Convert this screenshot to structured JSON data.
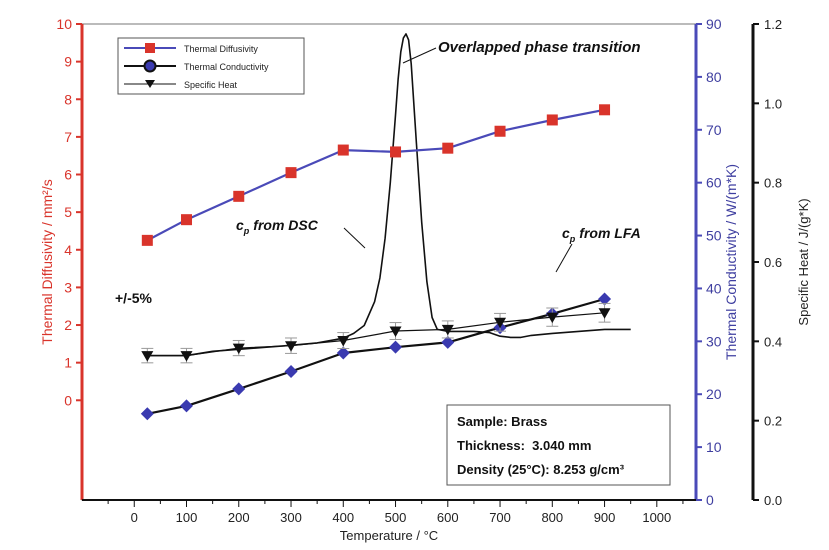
{
  "chart_data": {
    "type": "line",
    "xlabel": "Temperature / °C",
    "x_ticks": [
      0,
      100,
      200,
      300,
      400,
      500,
      600,
      700,
      800,
      900,
      1000
    ],
    "xlim": [
      -100,
      1075
    ],
    "axes": {
      "left": {
        "label": "Thermal Diffusivity / mm²/s",
        "ticks": [
          0,
          1,
          2,
          3,
          4,
          5,
          6,
          7,
          8,
          9,
          10
        ],
        "ylim": [
          -2.65,
          10
        ],
        "color": "#d9342b"
      },
      "right1": {
        "label": "Thermal Conductivity / W/(m*K)",
        "ticks": [
          0,
          10,
          20,
          30,
          40,
          50,
          60,
          70,
          80,
          90
        ],
        "ylim": [
          0,
          90
        ],
        "color": "#3f3fa0"
      },
      "right2": {
        "label": "Specific Heat / J/(g*K)",
        "ticks": [
          "0.0",
          "0.2",
          "0.4",
          "0.6",
          "0.8",
          "1.0",
          "1.2"
        ],
        "ylim": [
          0,
          1.2
        ],
        "color": "#222222"
      }
    },
    "series": [
      {
        "name": "Thermal Diffusivity",
        "axis": "left",
        "color": "#d9342b",
        "line_color": "#4a4ab8",
        "marker": "square",
        "x": [
          25,
          100,
          200,
          300,
          400,
          500,
          600,
          700,
          800,
          900
        ],
        "values": [
          4.25,
          4.8,
          5.42,
          6.05,
          6.65,
          6.6,
          6.7,
          7.15,
          7.45,
          7.72
        ]
      },
      {
        "name": "Thermal Conductivity",
        "axis": "right1",
        "color": "#3a3ab0",
        "line_color": "#111111",
        "marker": "diamond",
        "x": [
          25,
          100,
          200,
          300,
          400,
          500,
          600,
          700,
          800,
          900
        ],
        "values": [
          16.3,
          17.8,
          21.0,
          24.3,
          27.8,
          28.9,
          29.8,
          32.6,
          35.2,
          38.0
        ]
      },
      {
        "name": "Specific Heat",
        "axis": "right2",
        "color": "#111111",
        "line_color": "#111111",
        "marker": "triangle-down",
        "x": [
          25,
          100,
          200,
          300,
          400,
          500,
          600,
          700,
          800,
          900
        ],
        "values": [
          0.364,
          0.364,
          0.383,
          0.389,
          0.402,
          0.426,
          0.43,
          0.448,
          0.461,
          0.472
        ],
        "error_pct": 5
      }
    ],
    "dsc_curve": {
      "axis": "right2",
      "x": [
        25,
        100,
        150,
        200,
        250,
        300,
        350,
        400,
        420,
        440,
        460,
        470,
        480,
        490,
        500,
        505,
        510,
        515,
        520,
        525,
        530,
        540,
        550,
        560,
        570,
        580,
        600,
        650,
        680,
        700,
        720,
        740,
        760,
        800,
        850,
        900,
        950
      ],
      "values": [
        0.364,
        0.364,
        0.375,
        0.38,
        0.385,
        0.39,
        0.396,
        0.408,
        0.42,
        0.44,
        0.5,
        0.56,
        0.66,
        0.8,
        0.97,
        1.06,
        1.13,
        1.165,
        1.175,
        1.16,
        1.1,
        0.9,
        0.7,
        0.55,
        0.46,
        0.43,
        0.425,
        0.425,
        0.422,
        0.413,
        0.41,
        0.41,
        0.415,
        0.42,
        0.425,
        0.43,
        0.43
      ]
    },
    "annotations": {
      "peak": "Overlapped phase transition",
      "cp_dsc_sub": "p",
      "cp_dsc_text": "from DSC",
      "cp_lfa_sub": "p",
      "cp_lfa_text": "from LFA",
      "cp_letter": "c",
      "tolerance": "+/-5%"
    },
    "info_box": {
      "lines": [
        "Sample: Brass",
        "Thickness:  3.040 mm",
        "Density (25°C): 8.253 g/cm³"
      ]
    },
    "legend": {
      "placement": "top-left",
      "entries": [
        "Thermal Diffusivity",
        "Thermal Conductivity",
        "Specific Heat"
      ]
    }
  }
}
